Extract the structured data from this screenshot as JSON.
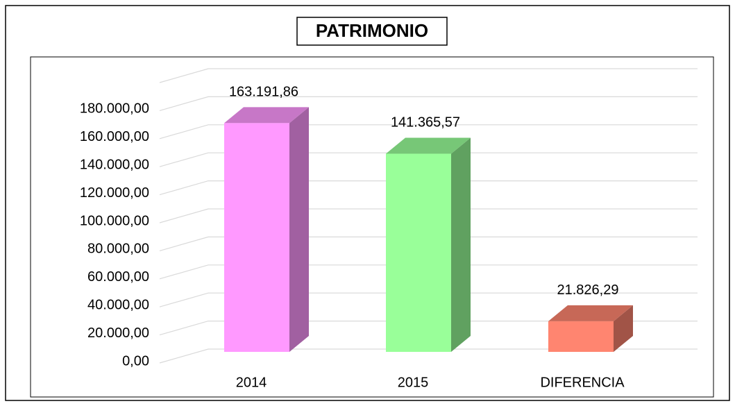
{
  "chart_data": {
    "type": "bar3d",
    "title": "PATRIMONIO",
    "categories": [
      "2014",
      "2015",
      "DIFERENCIA"
    ],
    "values": [
      163191.86,
      141365.57,
      21826.29
    ],
    "value_labels": [
      "163.191,86",
      "141.365,57",
      "21.826,29"
    ],
    "colors": [
      "#ff99ff",
      "#99ff99",
      "#ff8570"
    ],
    "ylim": [
      0,
      200000
    ],
    "yticks": [
      {
        "value": 0,
        "label": "0,00"
      },
      {
        "value": 20000,
        "label": "20.000,00"
      },
      {
        "value": 40000,
        "label": "40.000,00"
      },
      {
        "value": 60000,
        "label": "60.000,00"
      },
      {
        "value": 80000,
        "label": "80.000,00"
      },
      {
        "value": 100000,
        "label": "100.000,00"
      },
      {
        "value": 120000,
        "label": "120.000,00"
      },
      {
        "value": 140000,
        "label": "140.000,00"
      },
      {
        "value": 160000,
        "label": "160.000,00"
      },
      {
        "value": 180000,
        "label": "180.000,00"
      }
    ],
    "grid": true
  }
}
